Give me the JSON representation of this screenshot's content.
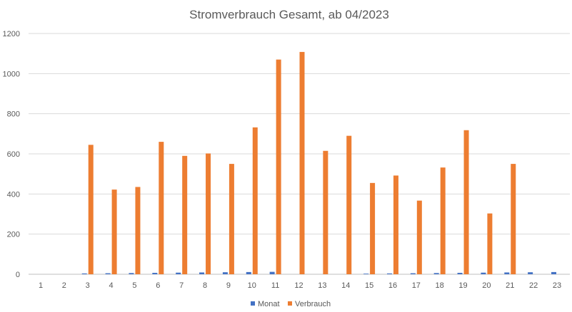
{
  "chart_data": {
    "type": "bar",
    "title": "Stromverbrauch Gesamt, ab 04/2023",
    "xlabel": "",
    "ylabel": "",
    "ylim": [
      0,
      1200
    ],
    "yticks": [
      0,
      200,
      400,
      600,
      800,
      1000,
      1200
    ],
    "grid": true,
    "legend_position": "bottom",
    "categories": [
      "1",
      "2",
      "3",
      "4",
      "5",
      "6",
      "7",
      "8",
      "9",
      "10",
      "11",
      "12",
      "13",
      "14",
      "15",
      "16",
      "17",
      "18",
      "19",
      "20",
      "21",
      "22",
      "23"
    ],
    "series": [
      {
        "name": "Monat",
        "color": "#4472c4",
        "values": [
          null,
          null,
          4,
          5,
          6,
          7,
          8,
          9,
          10,
          11,
          12,
          null,
          null,
          null,
          3,
          4,
          5,
          6,
          7,
          8,
          9,
          10,
          11
        ]
      },
      {
        "name": "Verbrauch",
        "color": "#ed7d31",
        "values": [
          null,
          null,
          645,
          422,
          435,
          660,
          590,
          602,
          550,
          732,
          1070,
          1108,
          615,
          690,
          455,
          492,
          367,
          532,
          718,
          303,
          550,
          null,
          null
        ]
      }
    ]
  }
}
